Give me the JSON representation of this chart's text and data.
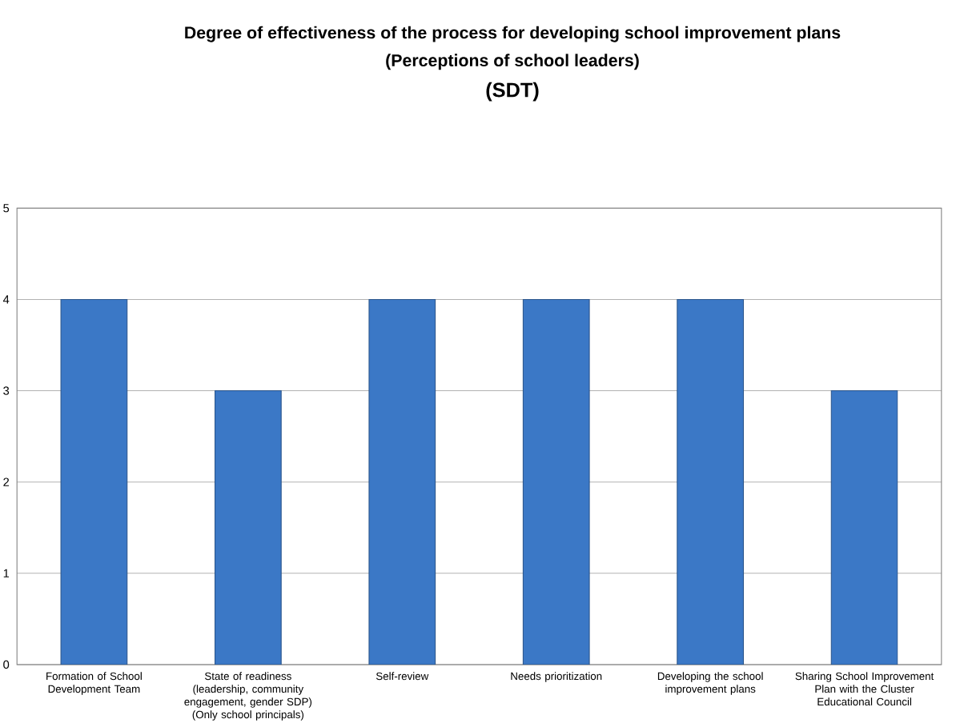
{
  "chart_data": {
    "type": "bar",
    "title": "Degree of effectiveness of the process for developing school improvement plans",
    "subtitle": "(Perceptions of school leaders)",
    "annotations": [
      "(SDT)"
    ],
    "categories": [
      "Formation of School Development Team",
      "State of readiness (leadership, community engagement, gender SDP) (Only school principals)",
      "Self-review",
      "Needs prioritization",
      "Developing the school improvement plans",
      "Sharing School Improvement Plan with the Cluster Educational Council"
    ],
    "values": [
      4,
      3,
      4,
      4,
      4,
      3
    ],
    "color": "#3b78c6",
    "ylim": [
      0,
      5
    ],
    "yticks": [
      0,
      1,
      2,
      3,
      4,
      5
    ],
    "grid": "y"
  }
}
